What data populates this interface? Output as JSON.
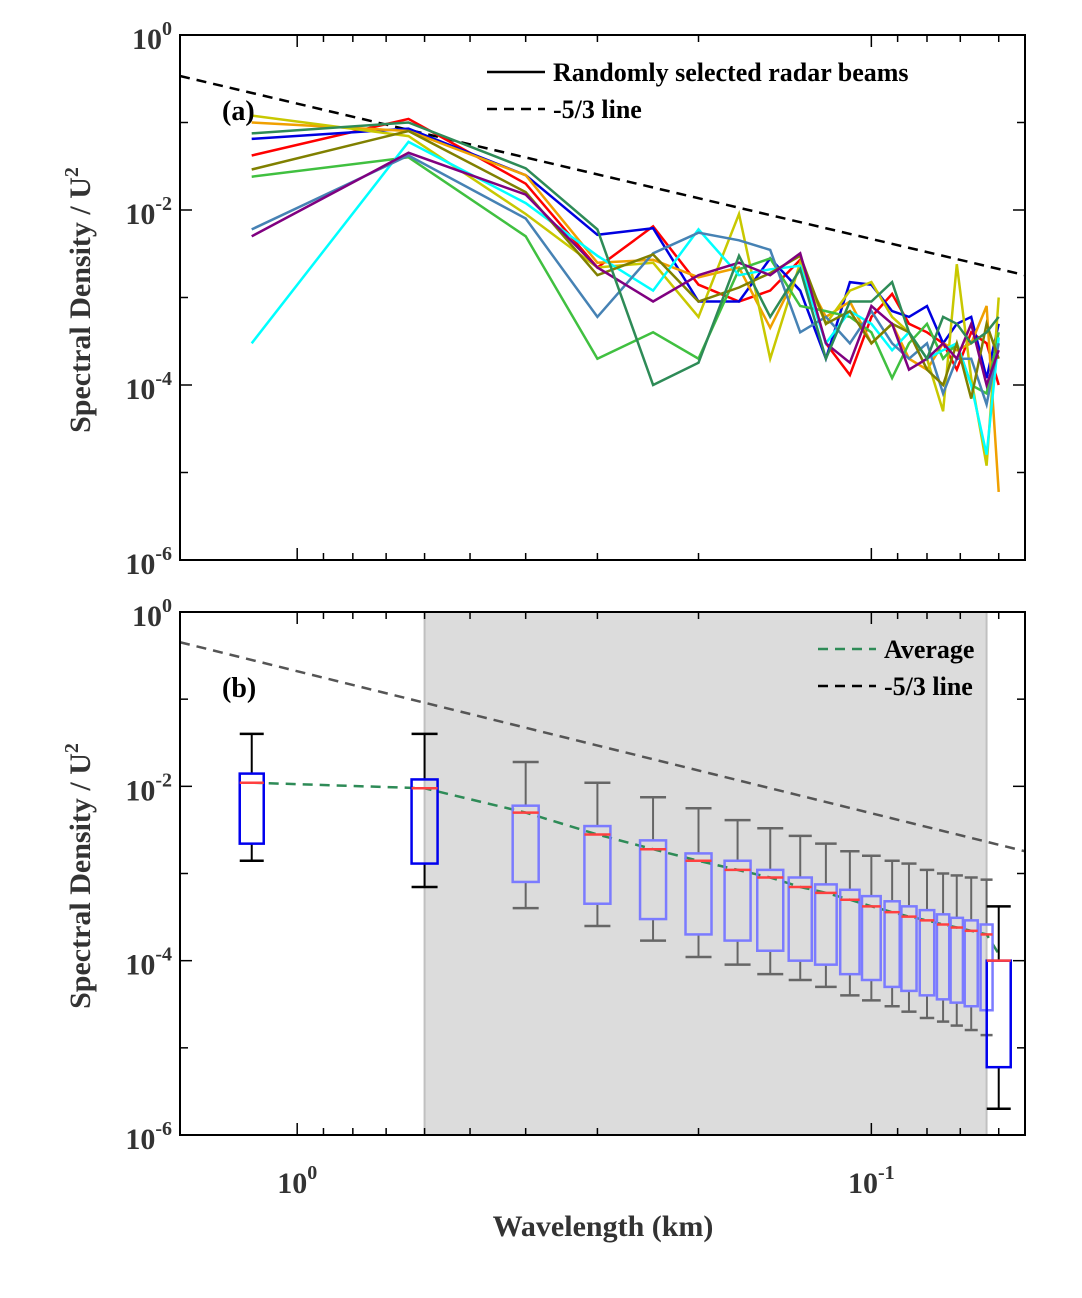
{
  "xlabel": "Wavelength (km)",
  "x_ticks": [
    {
      "value": 1,
      "base": "10",
      "exp": "0"
    },
    {
      "value": 0.1,
      "base": "10",
      "exp": "-1"
    }
  ],
  "y_ticks": [
    {
      "value": 1,
      "base": "10",
      "exp": "0"
    },
    {
      "value": 0.01,
      "base": "10",
      "exp": "-2"
    },
    {
      "value": 0.0001,
      "base": "10",
      "exp": "-4"
    },
    {
      "value": 1e-06,
      "base": "10",
      "exp": "-6"
    }
  ],
  "chart_data": [
    {
      "panel": "(a)",
      "type": "line",
      "x_scale": "log (reversed: wavelength decreasing to the right)",
      "y_scale": "log",
      "xlim": [
        1.6,
        0.054
      ],
      "ylim": [
        1e-06,
        1
      ],
      "ylabel_main": "Spectral Density / U",
      "ylabel_sup": "2",
      "xlabel": "",
      "legend": {
        "placement": "top-right",
        "entries": [
          {
            "label": "Randomly selected radar beams",
            "style": "solid",
            "color": "#000000"
          },
          {
            "label": "-5/3 line",
            "style": "dashed",
            "color": "#000000"
          }
        ]
      },
      "x": [
        1.2,
        0.64,
        0.4,
        0.3,
        0.24,
        0.2,
        0.17,
        0.15,
        0.133,
        0.12,
        0.109,
        0.1,
        0.092,
        0.086,
        0.08,
        0.075,
        0.071,
        0.067,
        0.063,
        0.06
      ],
      "reference_line": {
        "label": "-5/3 line",
        "x": [
          1.6,
          0.054
        ],
        "y": [
          0.34,
          0.0018
        ]
      },
      "series": [
        {
          "color": "#ff0000",
          "values": [
            0.042,
            0.11,
            0.02,
            0.0022,
            0.0065,
            0.0014,
            0.0009,
            0.0012,
            0.0027,
            0.0003,
            0.00013,
            0.0006,
            0.0011,
            0.0005,
            0.0004,
            0.0003,
            0.00015,
            0.0004,
            0.0003,
            0.0001
          ]
        },
        {
          "color": "#0000e0",
          "values": [
            0.065,
            0.085,
            0.025,
            0.0052,
            0.0062,
            0.0009,
            0.0009,
            0.0028,
            0.0012,
            0.0002,
            0.0015,
            0.0014,
            0.0007,
            0.0006,
            0.0008,
            0.0003,
            0.0005,
            0.0006,
            0.00012,
            0.0005
          ]
        },
        {
          "color": "#f0a000",
          "values": [
            0.1,
            0.08,
            0.025,
            0.0025,
            0.0027,
            0.0017,
            0.0022,
            0.00045,
            0.0022,
            0.0006,
            0.0009,
            0.0003,
            0.0005,
            0.0002,
            0.00015,
            0.0003,
            0.00025,
            0.0003,
            0.0008,
            6e-06
          ]
        },
        {
          "color": "#c8c800",
          "values": [
            0.12,
            0.07,
            0.009,
            0.0022,
            0.0025,
            0.0006,
            0.009,
            0.0002,
            0.0025,
            0.0005,
            0.0012,
            0.0015,
            0.0006,
            0.0004,
            0.0002,
            5e-05,
            0.0024,
            0.00012,
            1.2e-05,
            0.001
          ]
        },
        {
          "color": "#40c040",
          "values": [
            0.024,
            0.04,
            0.005,
            0.0002,
            0.0004,
            0.0002,
            0.0021,
            0.0028,
            0.0008,
            0.0007,
            0.0006,
            0.0004,
            0.00012,
            0.0003,
            0.0005,
            0.0002,
            0.0003,
            0.0001,
            8e-05,
            0.0004
          ]
        },
        {
          "color": "#00ffff",
          "values": [
            0.0003,
            0.06,
            0.012,
            0.003,
            0.0012,
            0.006,
            0.0018,
            0.0021,
            0.0023,
            0.0003,
            0.0007,
            0.0005,
            0.00025,
            0.0004,
            0.0002,
            0.00025,
            0.0003,
            0.0001,
            1.6e-05,
            0.00035
          ]
        },
        {
          "color": "#4682b4",
          "values": [
            0.006,
            0.042,
            0.008,
            0.0006,
            0.0032,
            0.0055,
            0.0045,
            0.0035,
            0.0004,
            0.0006,
            0.0003,
            0.0007,
            0.0003,
            0.0002,
            0.0003,
            8e-05,
            0.0002,
            0.0002,
            6e-05,
            0.0003
          ]
        },
        {
          "color": "#808000",
          "values": [
            0.029,
            0.08,
            0.016,
            0.0018,
            0.0031,
            0.0009,
            0.0013,
            0.0019,
            0.003,
            0.0005,
            0.0007,
            0.0003,
            0.0005,
            0.0004,
            0.00015,
            0.0001,
            0.0003,
            7e-05,
            0.0005,
            0.0002
          ]
        },
        {
          "color": "#800080",
          "values": [
            0.005,
            0.045,
            0.015,
            0.0022,
            0.0009,
            0.0018,
            0.0025,
            0.0018,
            0.0032,
            0.0003,
            0.00018,
            0.0008,
            0.0005,
            0.00015,
            0.0002,
            0.0003,
            0.0002,
            0.0005,
            0.0001,
            0.00025
          ]
        },
        {
          "color": "#2e8b57",
          "values": [
            0.075,
            0.1,
            0.03,
            0.006,
            0.0001,
            0.00018,
            0.003,
            0.0006,
            0.0021,
            0.0002,
            0.0009,
            0.0009,
            0.0015,
            0.0004,
            0.0002,
            0.0006,
            0.0005,
            0.0003,
            0.0004,
            0.0006
          ]
        }
      ]
    },
    {
      "panel": "(b)",
      "type": "box",
      "x_scale": "log (reversed: wavelength decreasing to the right)",
      "y_scale": "log",
      "xlim": [
        1.6,
        0.054
      ],
      "ylim": [
        1e-06,
        1
      ],
      "ylabel_main": "Spectral Density / U",
      "ylabel_sup": "2",
      "xlabel": "Wavelength (km)",
      "legend": {
        "placement": "top-right",
        "entries": [
          {
            "label": "Average",
            "style": "dashed",
            "color": "#2e8b57"
          },
          {
            "label": "-5/3 line",
            "style": "dashed",
            "color": "#000000"
          }
        ]
      },
      "shaded_region": {
        "x_from": 0.6,
        "x_to": 0.063
      },
      "reference_line": {
        "label": "-5/3 line",
        "x": [
          1.6,
          0.054
        ],
        "y": [
          0.45,
          0.0018
        ]
      },
      "boxes": [
        {
          "x": 1.2,
          "whisker_low": 0.0014,
          "q1": 0.0022,
          "median": 0.011,
          "q3": 0.014,
          "whisker_high": 0.04,
          "highlight": false
        },
        {
          "x": 0.6,
          "whisker_low": 0.0007,
          "q1": 0.0013,
          "median": 0.0095,
          "q3": 0.012,
          "whisker_high": 0.04,
          "highlight": false
        },
        {
          "x": 0.4,
          "whisker_low": 0.0004,
          "q1": 0.0008,
          "median": 0.005,
          "q3": 0.006,
          "whisker_high": 0.019,
          "highlight": true
        },
        {
          "x": 0.3,
          "whisker_low": 0.00025,
          "q1": 0.00045,
          "median": 0.0028,
          "q3": 0.0035,
          "whisker_high": 0.011,
          "highlight": true
        },
        {
          "x": 0.24,
          "whisker_low": 0.00017,
          "q1": 0.0003,
          "median": 0.0019,
          "q3": 0.0024,
          "whisker_high": 0.0075,
          "highlight": true
        },
        {
          "x": 0.2,
          "whisker_low": 0.00011,
          "q1": 0.0002,
          "median": 0.0014,
          "q3": 0.0017,
          "whisker_high": 0.0056,
          "highlight": true
        },
        {
          "x": 0.171,
          "whisker_low": 9e-05,
          "q1": 0.00017,
          "median": 0.0011,
          "q3": 0.0014,
          "whisker_high": 0.0041,
          "highlight": true
        },
        {
          "x": 0.15,
          "whisker_low": 7e-05,
          "q1": 0.00013,
          "median": 0.0009,
          "q3": 0.0011,
          "whisker_high": 0.0033,
          "highlight": true
        },
        {
          "x": 0.133,
          "whisker_low": 6e-05,
          "q1": 0.0001,
          "median": 0.0007,
          "q3": 0.0009,
          "whisker_high": 0.0027,
          "highlight": true
        },
        {
          "x": 0.12,
          "whisker_low": 5e-05,
          "q1": 9e-05,
          "median": 0.0006,
          "q3": 0.00075,
          "whisker_high": 0.0022,
          "highlight": true
        },
        {
          "x": 0.109,
          "whisker_low": 4e-05,
          "q1": 7e-05,
          "median": 0.0005,
          "q3": 0.00065,
          "whisker_high": 0.0018,
          "highlight": true
        },
        {
          "x": 0.1,
          "whisker_low": 3.5e-05,
          "q1": 6e-05,
          "median": 0.00042,
          "q3": 0.00055,
          "whisker_high": 0.0016,
          "highlight": true
        },
        {
          "x": 0.092,
          "whisker_low": 3e-05,
          "q1": 5e-05,
          "median": 0.00036,
          "q3": 0.00048,
          "whisker_high": 0.0014,
          "highlight": true
        },
        {
          "x": 0.086,
          "whisker_low": 2.6e-05,
          "q1": 4.5e-05,
          "median": 0.00032,
          "q3": 0.00042,
          "whisker_high": 0.0013,
          "highlight": true
        },
        {
          "x": 0.08,
          "whisker_low": 2.2e-05,
          "q1": 4e-05,
          "median": 0.00029,
          "q3": 0.00038,
          "whisker_high": 0.0011,
          "highlight": true
        },
        {
          "x": 0.075,
          "whisker_low": 2e-05,
          "q1": 3.6e-05,
          "median": 0.00026,
          "q3": 0.00034,
          "whisker_high": 0.001,
          "highlight": true
        },
        {
          "x": 0.071,
          "whisker_low": 1.8e-05,
          "q1": 3.3e-05,
          "median": 0.00024,
          "q3": 0.00031,
          "whisker_high": 0.00095,
          "highlight": true
        },
        {
          "x": 0.067,
          "whisker_low": 1.6e-05,
          "q1": 3e-05,
          "median": 0.00022,
          "q3": 0.00029,
          "whisker_high": 0.0009,
          "highlight": true
        },
        {
          "x": 0.063,
          "whisker_low": 1.4e-05,
          "q1": 2.7e-05,
          "median": 0.0002,
          "q3": 0.00026,
          "whisker_high": 0.00085,
          "highlight": true
        },
        {
          "x": 0.06,
          "whisker_low": 2e-06,
          "q1": 6e-06,
          "median": 0.0001,
          "q3": 0.0001,
          "whisker_high": 0.00042,
          "highlight": false
        }
      ],
      "average": {
        "label": "Average",
        "x": [
          1.2,
          0.6,
          0.4,
          0.3,
          0.24,
          0.2,
          0.171,
          0.15,
          0.133,
          0.12,
          0.109,
          0.1,
          0.092,
          0.086,
          0.08,
          0.075,
          0.071,
          0.067,
          0.063,
          0.06
        ],
        "y": [
          0.011,
          0.0095,
          0.005,
          0.0028,
          0.0019,
          0.0014,
          0.0011,
          0.0009,
          0.0007,
          0.0006,
          0.0005,
          0.00042,
          0.00036,
          0.00032,
          0.00029,
          0.00026,
          0.00024,
          0.00022,
          0.0002,
          0.00012
        ]
      }
    }
  ]
}
